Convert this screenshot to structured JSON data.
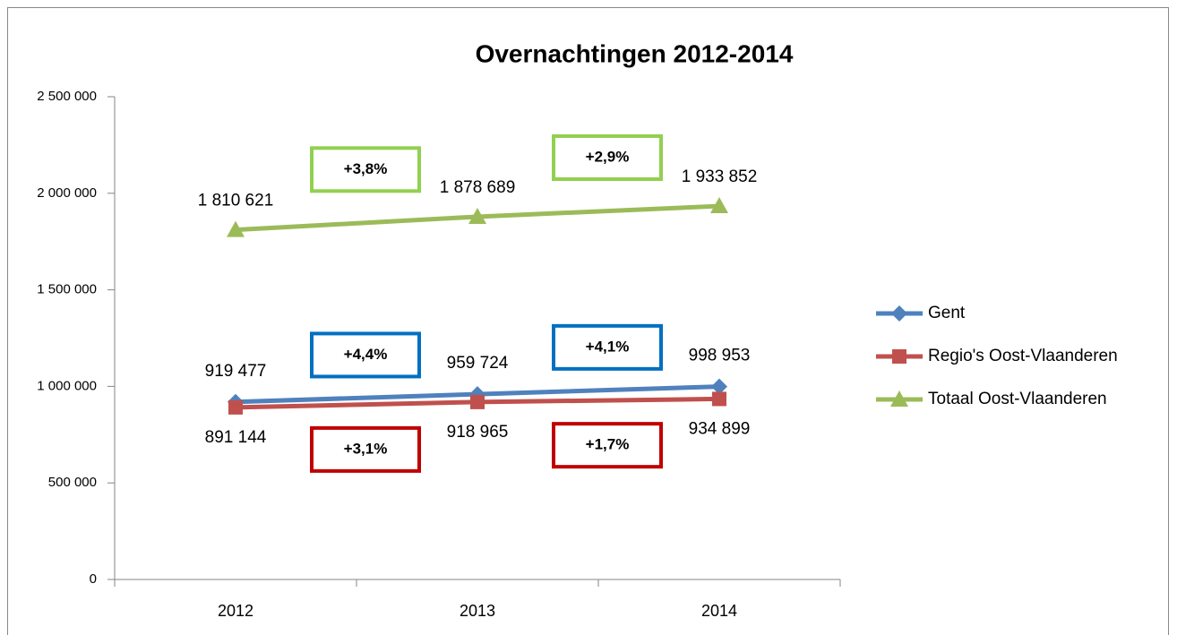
{
  "chart_data": {
    "type": "line",
    "title": "Overnachtingen 2012-2014",
    "categories": [
      "2012",
      "2013",
      "2014"
    ],
    "series": [
      {
        "name": "Gent",
        "color": "#4f81bd",
        "marker": "diamond",
        "values": [
          919477,
          959724,
          998953
        ],
        "value_labels": [
          "919 477",
          "959 724",
          "998 953"
        ],
        "annotations": [
          "+4,4%",
          "+4,1%"
        ],
        "annotation_color": "#0070c0"
      },
      {
        "name": "Regio's Oost-Vlaanderen",
        "color": "#c0504d",
        "marker": "square",
        "values": [
          891144,
          918965,
          934899
        ],
        "value_labels": [
          "891 144",
          "918 965",
          "934 899"
        ],
        "annotations": [
          "+3,1%",
          "+1,7%"
        ],
        "annotation_color": "#c00000"
      },
      {
        "name": "Totaal Oost-Vlaanderen",
        "color": "#9bbb59",
        "marker": "triangle",
        "values": [
          1810621,
          1878689,
          1933852
        ],
        "value_labels": [
          "1 810 621",
          "1 878 689",
          "1 933 852"
        ],
        "annotations": [
          "+3,8%",
          "+2,9%"
        ],
        "annotation_color": "#92d050"
      }
    ],
    "ylim": [
      0,
      2500000
    ],
    "yticks": [
      0,
      {
        "value": 500000,
        "label": "500 000"
      },
      {
        "value": 1000000,
        "label": "1 000 000"
      },
      {
        "value": 1500000,
        "label": "1 500 000"
      },
      {
        "value": 2000000,
        "label": "2 000 000"
      },
      {
        "value": 2500000,
        "label": "2 500 000"
      }
    ],
    "legend": "right"
  }
}
